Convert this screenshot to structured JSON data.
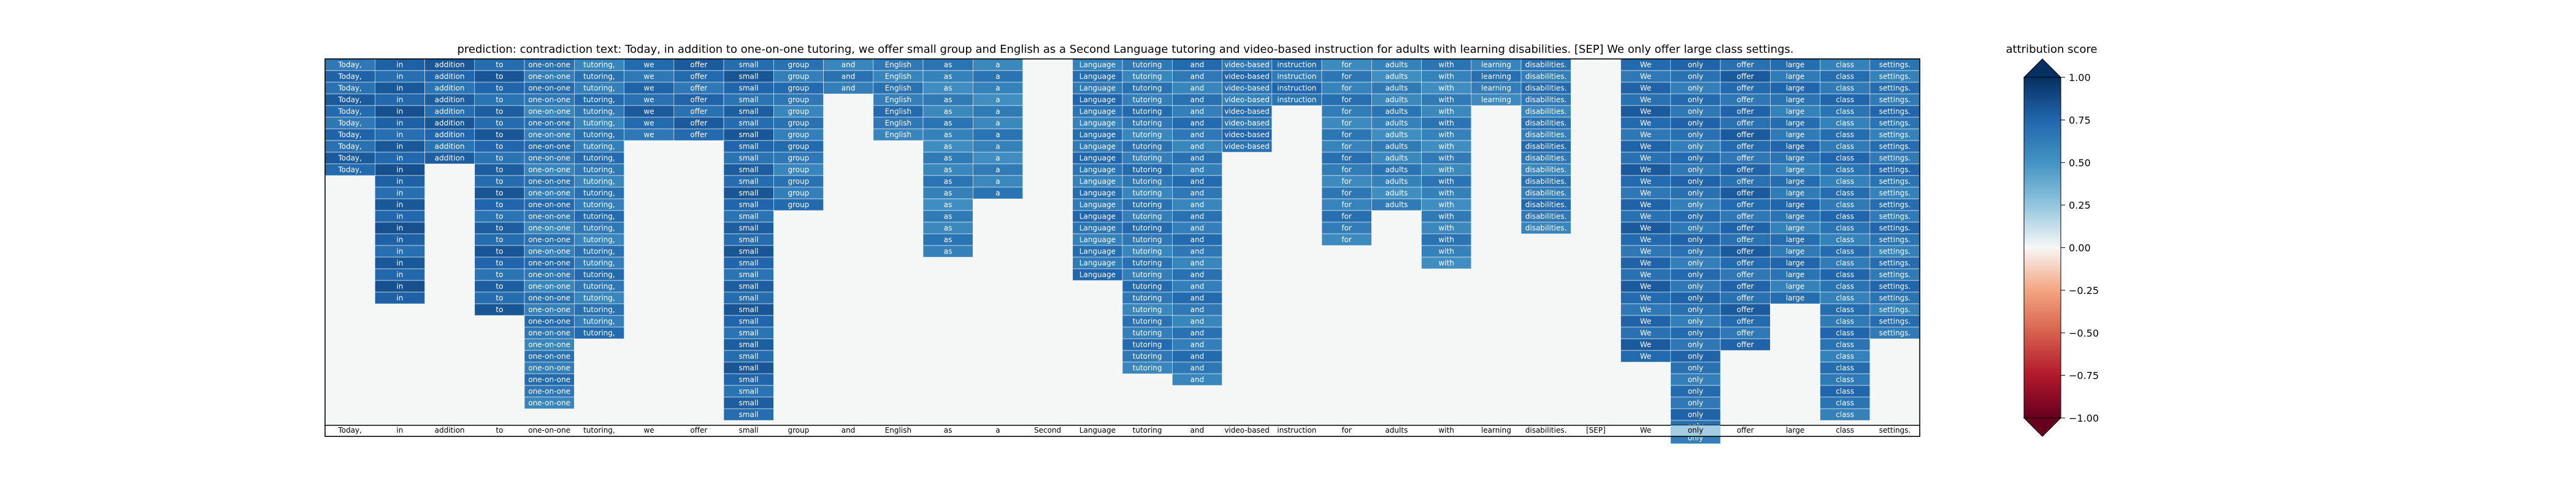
{
  "chart_data": {
    "type": "heatmap",
    "title": "prediction:  contradiction     text:  Today, in addition to one-on-one tutoring, we offer small group and English as a Second Language tutoring and video-based instruction for adults with learning disabilities. [SEP] We only offer large class settings.",
    "tokens": [
      "Today,",
      "in",
      "addition",
      "to",
      "one-on-one",
      "tutoring,",
      "we",
      "offer",
      "small",
      "group",
      "and",
      "English",
      "as",
      "a",
      "Second",
      "Language",
      "tutoring",
      "and",
      "video-based",
      "instruction",
      "for",
      "adults",
      "with",
      "learning",
      "disabilities.",
      "[SEP]",
      "We",
      "only",
      "offer",
      "large",
      "class",
      "settings."
    ],
    "row_count": 31,
    "column_lengths": [
      10,
      21,
      9,
      22,
      30,
      24,
      7,
      7,
      31,
      13,
      3,
      7,
      17,
      12,
      0,
      19,
      27,
      28,
      8,
      4,
      16,
      13,
      18,
      4,
      15,
      0,
      26,
      33,
      25,
      21,
      31,
      24
    ],
    "column_strength": [
      0.78,
      0.82,
      0.8,
      0.8,
      0.72,
      0.72,
      0.78,
      0.78,
      0.8,
      0.72,
      0.72,
      0.72,
      0.68,
      0.68,
      0.0,
      0.74,
      0.72,
      0.72,
      0.74,
      0.74,
      0.7,
      0.68,
      0.68,
      0.7,
      0.72,
      0.0,
      0.78,
      0.75,
      0.78,
      0.74,
      0.74,
      0.74
    ],
    "bottom_row_values": [
      0,
      0,
      0,
      0,
      0,
      0,
      0,
      0,
      0,
      0,
      0,
      0,
      0,
      0,
      0,
      0,
      0,
      0,
      0,
      0,
      0,
      0,
      0,
      0,
      0,
      0,
      0,
      0.35,
      0,
      0,
      0,
      0
    ],
    "colorbar": {
      "label": "attribution score",
      "ticks": [
        "1.00",
        "0.75",
        "0.50",
        "0.25",
        "0.00",
        "−0.25",
        "−0.50",
        "−0.75",
        "−1.00"
      ],
      "tick_values": [
        1.0,
        0.75,
        0.5,
        0.25,
        0.0,
        -0.25,
        -0.5,
        -0.75,
        -1.0
      ],
      "range": [
        -1.0,
        1.0
      ],
      "colormap": "RdBu"
    }
  }
}
